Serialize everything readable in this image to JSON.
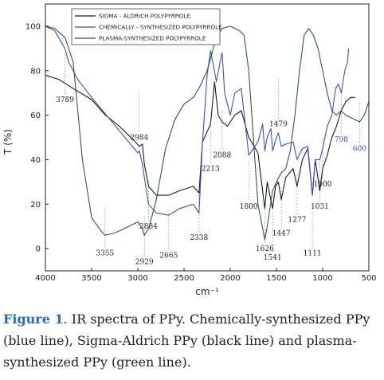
{
  "chart_data": {
    "type": "line",
    "title": "",
    "xlabel": "cm⁻¹",
    "ylabel": "T (%)",
    "xlim": [
      4000,
      500
    ],
    "ylim": [
      -10,
      110
    ],
    "x_ticks": [
      "4000",
      "3500",
      "3000",
      "2500",
      "2000",
      "1500",
      "1000",
      "500"
    ],
    "y_ticks": [
      "0",
      "20",
      "40",
      "60",
      "80",
      "100"
    ],
    "legend": [
      "SIGMA - ALDRICH POLYPYRROLE",
      "CHEMICALLY - SYNTHESIZED POLYPYRROLE",
      "PLASMA-SYNTHESIZED POLYPYRROLE"
    ],
    "series": [
      {
        "name": "SIGMA - ALDRICH POLYPYRROLE",
        "color": "#1a1a1a",
        "points": [
          [
            4000,
            78
          ],
          [
            3850,
            76
          ],
          [
            3700,
            72
          ],
          [
            3500,
            67
          ],
          [
            3350,
            60
          ],
          [
            3200,
            55
          ],
          [
            3050,
            49
          ],
          [
            2984,
            46
          ],
          [
            2950,
            47
          ],
          [
            2929,
            38
          ],
          [
            2884,
            28
          ],
          [
            2800,
            24
          ],
          [
            2665,
            24
          ],
          [
            2550,
            26
          ],
          [
            2400,
            28
          ],
          [
            2338,
            25
          ],
          [
            2300,
            48
          ],
          [
            2213,
            56
          ],
          [
            2170,
            75
          ],
          [
            2130,
            60
          ],
          [
            2088,
            57
          ],
          [
            2030,
            55
          ],
          [
            1950,
            60
          ],
          [
            1880,
            62
          ],
          [
            1800,
            50
          ],
          [
            1700,
            43
          ],
          [
            1626,
            18
          ],
          [
            1600,
            30
          ],
          [
            1541,
            18
          ],
          [
            1510,
            28
          ],
          [
            1480,
            30
          ],
          [
            1447,
            22
          ],
          [
            1400,
            32
          ],
          [
            1320,
            36
          ],
          [
            1277,
            28
          ],
          [
            1220,
            40
          ],
          [
            1160,
            45
          ],
          [
            1111,
            24
          ],
          [
            1080,
            40
          ],
          [
            1031,
            26
          ],
          [
            1000,
            36
          ],
          [
            950,
            42
          ],
          [
            900,
            50
          ],
          [
            850,
            55
          ],
          [
            800,
            62
          ],
          [
            750,
            66
          ],
          [
            700,
            68
          ],
          [
            650,
            68
          ]
        ]
      },
      {
        "name": "CHEMICALLY - SYNTHESIZED POLYPYRROLE",
        "color": "#3b4fbf",
        "points": [
          [
            4000,
            100
          ],
          [
            3900,
            98
          ],
          [
            3789,
            90
          ],
          [
            3750,
            84
          ],
          [
            3650,
            76
          ],
          [
            3500,
            68
          ],
          [
            3300,
            58
          ],
          [
            3100,
            48
          ],
          [
            3000,
            43
          ],
          [
            2984,
            44
          ],
          [
            2950,
            38
          ],
          [
            2929,
            32
          ],
          [
            2884,
            20
          ],
          [
            2800,
            16
          ],
          [
            2665,
            15
          ],
          [
            2550,
            18
          ],
          [
            2400,
            20
          ],
          [
            2338,
            16
          ],
          [
            2300,
            48
          ],
          [
            2250,
            78
          ],
          [
            2213,
            89
          ],
          [
            2180,
            82
          ],
          [
            2150,
            75
          ],
          [
            2100,
            86
          ],
          [
            2088,
            88
          ],
          [
            2060,
            70
          ],
          [
            2000,
            60
          ],
          [
            1950,
            70
          ],
          [
            1880,
            72
          ],
          [
            1800,
            42
          ],
          [
            1750,
            45
          ],
          [
            1700,
            48
          ],
          [
            1650,
            56
          ],
          [
            1626,
            44
          ],
          [
            1600,
            50
          ],
          [
            1560,
            54
          ],
          [
            1541,
            44
          ],
          [
            1500,
            50
          ],
          [
            1479,
            52
          ],
          [
            1447,
            46
          ],
          [
            1400,
            47
          ],
          [
            1320,
            48
          ],
          [
            1277,
            40
          ],
          [
            1220,
            45
          ],
          [
            1160,
            46
          ],
          [
            1111,
            24
          ],
          [
            1080,
            40
          ],
          [
            1031,
            40
          ],
          [
            1000,
            45
          ],
          [
            950,
            55
          ],
          [
            900,
            60
          ],
          [
            860,
            72
          ],
          [
            830,
            74
          ],
          [
            798,
            70
          ],
          [
            760,
            80
          ],
          [
            730,
            84
          ],
          [
            720,
            90
          ]
        ]
      },
      {
        "name": "PLASMA-SYNTHESIZED POLYPYRROLE",
        "color": "#2f5a3a",
        "points": [
          [
            4000,
            100
          ],
          [
            3900,
            99
          ],
          [
            3789,
            95
          ],
          [
            3700,
            84
          ],
          [
            3600,
            40
          ],
          [
            3500,
            14
          ],
          [
            3400,
            8
          ],
          [
            3355,
            6
          ],
          [
            3250,
            7
          ],
          [
            3100,
            10
          ],
          [
            3000,
            12
          ],
          [
            2950,
            9
          ],
          [
            2929,
            6
          ],
          [
            2884,
            9
          ],
          [
            2800,
            22
          ],
          [
            2700,
            45
          ],
          [
            2600,
            58
          ],
          [
            2500,
            65
          ],
          [
            2400,
            68
          ],
          [
            2338,
            72
          ],
          [
            2250,
            80
          ],
          [
            2150,
            95
          ],
          [
            2088,
            99
          ],
          [
            2000,
            100
          ],
          [
            1900,
            98
          ],
          [
            1850,
            96
          ],
          [
            1800,
            80
          ],
          [
            1750,
            50
          ],
          [
            1700,
            20
          ],
          [
            1626,
            4
          ],
          [
            1600,
            10
          ],
          [
            1541,
            26
          ],
          [
            1500,
            30
          ],
          [
            1450,
            34
          ],
          [
            1400,
            36
          ],
          [
            1350,
            44
          ],
          [
            1300,
            60
          ],
          [
            1250,
            80
          ],
          [
            1200,
            96
          ],
          [
            1150,
            99
          ],
          [
            1100,
            96
          ],
          [
            1050,
            90
          ],
          [
            1000,
            80
          ],
          [
            950,
            70
          ],
          [
            900,
            62
          ],
          [
            850,
            60
          ],
          [
            800,
            62
          ],
          [
            750,
            60
          ],
          [
            700,
            59
          ],
          [
            650,
            58
          ],
          [
            600,
            57
          ],
          [
            550,
            60
          ],
          [
            500,
            66
          ]
        ]
      }
    ],
    "annotations": [
      {
        "label": "3789",
        "x": 3789,
        "y": 66,
        "color": "black"
      },
      {
        "label": "2984",
        "x": 2984,
        "y": 49,
        "color": "black"
      },
      {
        "label": "3355",
        "x": 3355,
        "y": -3,
        "color": "black"
      },
      {
        "label": "2929",
        "x": 2929,
        "y": -7,
        "color": "black"
      },
      {
        "label": "2884",
        "x": 2884,
        "y": 9,
        "color": "black"
      },
      {
        "label": "2665",
        "x": 2665,
        "y": -4,
        "color": "black"
      },
      {
        "label": "2338",
        "x": 2338,
        "y": 4,
        "color": "black"
      },
      {
        "label": "2213",
        "x": 2213,
        "y": 35,
        "color": "black"
      },
      {
        "label": "2088",
        "x": 2088,
        "y": 41,
        "color": "black"
      },
      {
        "label": "1800",
        "x": 1800,
        "y": 18,
        "color": "black"
      },
      {
        "label": "1626",
        "x": 1626,
        "y": -1,
        "color": "black"
      },
      {
        "label": "1541",
        "x": 1541,
        "y": -5,
        "color": "black"
      },
      {
        "label": "1447",
        "x": 1447,
        "y": 6,
        "color": "black"
      },
      {
        "label": "1479",
        "x": 1479,
        "y": 55,
        "color": "black"
      },
      {
        "label": "1277",
        "x": 1277,
        "y": 12,
        "color": "black"
      },
      {
        "label": "1111",
        "x": 1111,
        "y": -3,
        "color": "black"
      },
      {
        "label": "1031",
        "x": 1031,
        "y": 18,
        "color": "black"
      },
      {
        "label": "1000",
        "x": 1000,
        "y": 28,
        "color": "black"
      },
      {
        "label": "798",
        "x": 798,
        "y": 48,
        "color": "blue"
      },
      {
        "label": "600",
        "x": 600,
        "y": 44,
        "color": "blue"
      }
    ],
    "grid": false,
    "legend_placement": "top-center"
  },
  "caption": {
    "label": "Figure 1",
    "text": ". IR spectra of PPy. Chemically-synthesized PPy (blue line), Sigma-Aldrich PPy (black line) and plasma-synthesized PPy (green line)."
  }
}
